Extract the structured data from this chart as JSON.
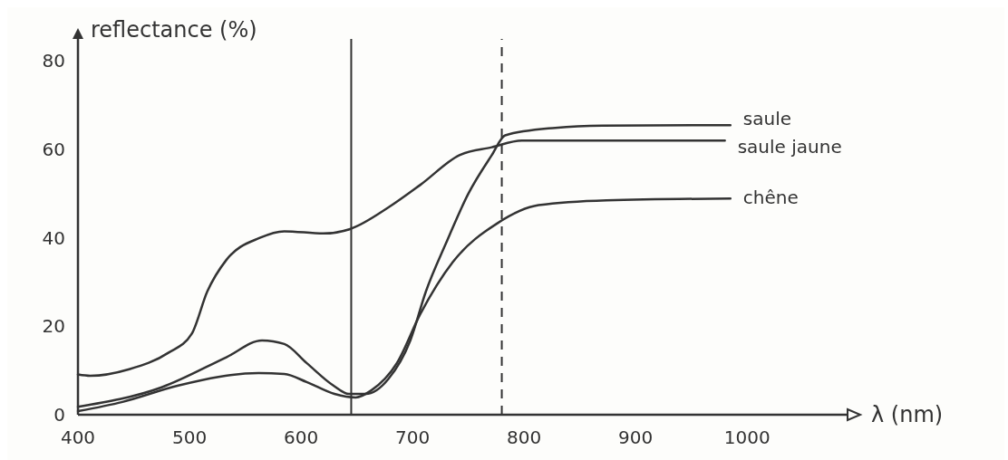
{
  "chart_data": {
    "type": "line",
    "xlabel": "λ (nm)",
    "ylabel": "reflectance (%)",
    "xlim": [
      400,
      1090
    ],
    "ylim": [
      0,
      85
    ],
    "xticks": [
      400,
      500,
      600,
      700,
      800,
      900,
      1000
    ],
    "yticks": [
      0,
      20,
      40,
      60,
      80
    ],
    "grid": false,
    "legend": false,
    "line_style": "solid",
    "marker": "none",
    "ref_lines": [
      {
        "axis": "x",
        "value": 780,
        "line_style": "dashed",
        "color": "#333333"
      },
      {
        "axis": "x",
        "value": 645,
        "line_style": "solid",
        "color": "#333333"
      }
    ],
    "series": [
      {
        "name": "saule",
        "color": "#333333",
        "x": [
          400,
          475,
          533,
          565,
          585,
          605,
          629,
          643,
          658,
          678,
          698,
          712,
          730,
          750,
          771,
          783,
          828,
          870,
          985
        ],
        "values": [
          1.8,
          6.2,
          13,
          16.8,
          16,
          11.7,
          6.6,
          4.7,
          4.7,
          8,
          16.8,
          27.9,
          38.8,
          50,
          58.7,
          63.2,
          64.9,
          65.4,
          65.5
        ]
      },
      {
        "name": "saule jaune",
        "color": "#333333",
        "x": [
          400,
          411,
          446,
          481,
          502,
          516,
          533,
          563,
          585,
          620,
          644,
          679,
          707,
          742,
          771,
          798,
          850,
          980
        ],
        "values": [
          9.1,
          8.8,
          10.3,
          14,
          18.3,
          27.9,
          35,
          40,
          41.5,
          41,
          42,
          47,
          52,
          58.7,
          60.5,
          62,
          62,
          62
        ]
      },
      {
        "name": "chêne",
        "color": "#333333",
        "x": [
          400,
          440,
          490,
          562,
          585,
          605,
          630,
          649,
          663,
          686,
          707,
          736,
          776,
          813,
          874,
          985
        ],
        "values": [
          0.8,
          2.9,
          6.6,
          9.4,
          9.2,
          7.4,
          4.7,
          3.9,
          5.5,
          11.7,
          22.8,
          34.5,
          43.3,
          47.4,
          48.5,
          48.9
        ]
      }
    ]
  }
}
